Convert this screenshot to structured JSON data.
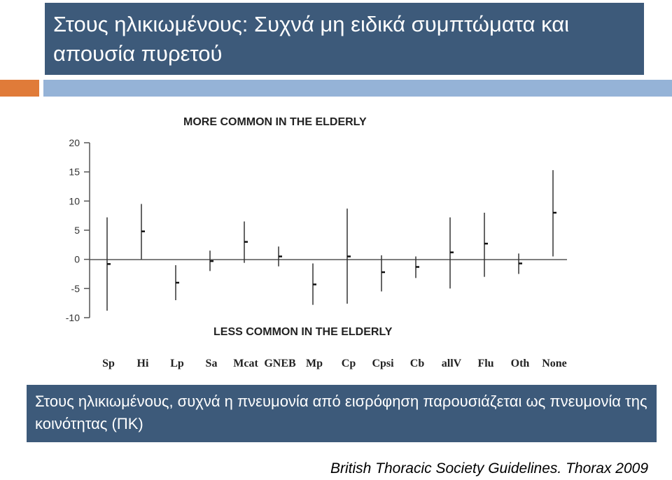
{
  "slide": {
    "title": "Στους ηλικιωμένους: Συχνά μη ειδικά συμπτώματα και απουσία πυρετού",
    "note": "Στους ηλικιωμένους, συχνά η πνευμονία από εισρόφηση παρουσιάζεται ως πνευμονία της κοινότητας (ΠΚ)",
    "citation": "British Thoracic Society Guidelines. Thorax 2009",
    "colors": {
      "header": "#3d5a7a",
      "accent_orange": "#e07b39",
      "accent_blue": "#95b3d7"
    }
  },
  "chart_data": {
    "type": "error_bar",
    "top_label": "MORE COMMON IN THE ELDERLY",
    "bottom_label": "LESS COMMON IN THE ELDERLY",
    "categories": [
      "Sp",
      "Hi",
      "Lp",
      "Sa",
      "Mcat",
      "GNEB",
      "Mp",
      "Cp",
      "Cpsi",
      "Cb",
      "allV",
      "Flu",
      "Oth",
      "None"
    ],
    "points": [
      {
        "label": "Sp",
        "value": -0.8,
        "low": -8.8,
        "high": 7.2
      },
      {
        "label": "Hi",
        "value": 4.8,
        "low": 0,
        "high": 9.5
      },
      {
        "label": "Lp",
        "value": -4,
        "low": -7,
        "high": -1
      },
      {
        "label": "Sa",
        "value": -0.3,
        "low": -2,
        "high": 1.5
      },
      {
        "label": "Mcat",
        "value": 3,
        "low": -0.6,
        "high": 6.5
      },
      {
        "label": "GNEB",
        "value": 0.5,
        "low": -1.2,
        "high": 2.2
      },
      {
        "label": "Mp",
        "value": -4.3,
        "low": -7.8,
        "high": -0.7
      },
      {
        "label": "Cp",
        "value": 0.5,
        "low": -7.6,
        "high": 8.7
      },
      {
        "label": "Cpsi",
        "value": -2.2,
        "low": -5.5,
        "high": 0.7
      },
      {
        "label": "Cb",
        "value": -1.3,
        "low": -3.2,
        "high": 0.5
      },
      {
        "label": "allV",
        "value": 1.2,
        "low": -5,
        "high": 7.2
      },
      {
        "label": "Flu",
        "value": 2.7,
        "low": -3,
        "high": 8
      },
      {
        "label": "Oth",
        "value": -0.7,
        "low": -2.5,
        "high": 1
      },
      {
        "label": "None",
        "value": 8,
        "low": 0.5,
        "high": 15.3
      }
    ],
    "yticks": [
      "20",
      "15",
      "10",
      "5",
      "0",
      "-5",
      "-10"
    ],
    "ylim": [
      -10,
      20
    ],
    "grid": false
  }
}
